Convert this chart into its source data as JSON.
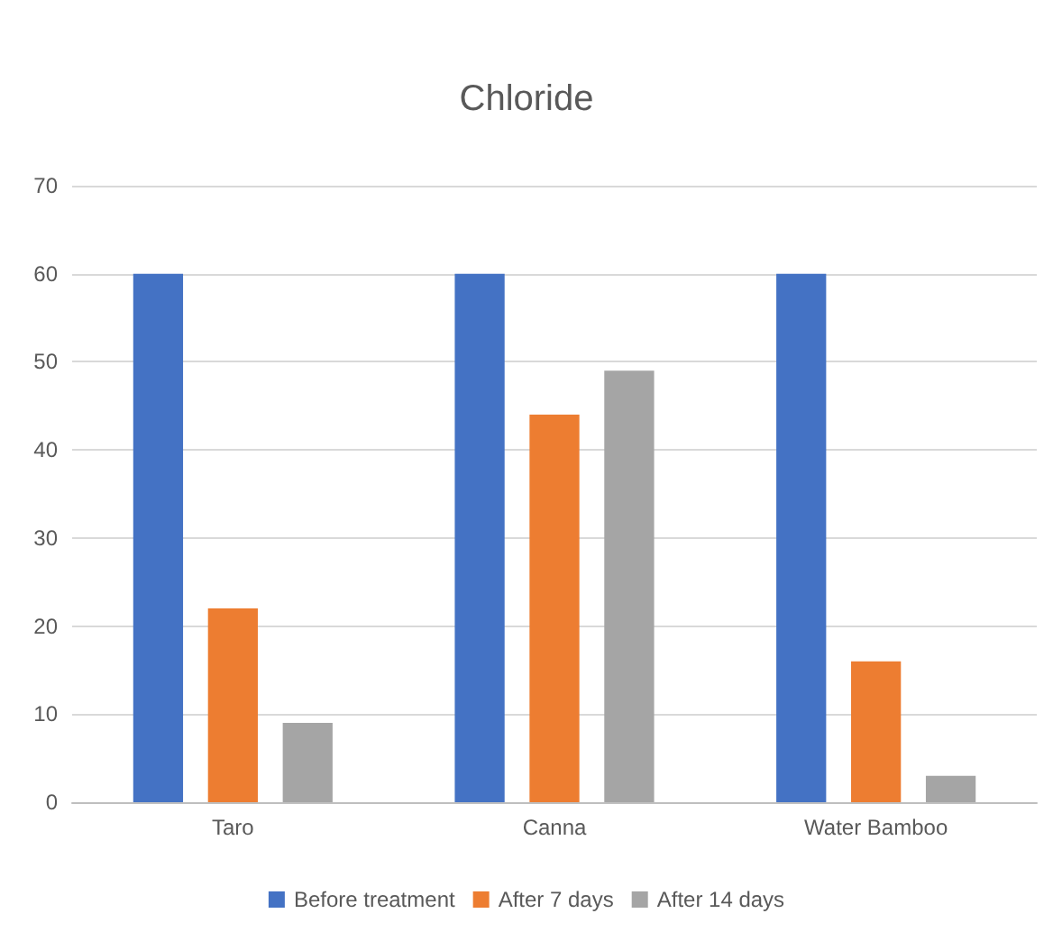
{
  "chart_data": {
    "type": "bar",
    "title": "Chloride",
    "categories": [
      "Taro",
      "Canna",
      "Water Bamboo"
    ],
    "series": [
      {
        "name": "Before treatment",
        "color": "#4472c4",
        "values": [
          60,
          60,
          60
        ]
      },
      {
        "name": "After 7 days",
        "color": "#ed7d31",
        "values": [
          22,
          44,
          16
        ]
      },
      {
        "name": "After 14 days",
        "color": "#a5a5a5",
        "values": [
          9,
          49,
          3
        ]
      }
    ],
    "ylim": [
      0,
      70
    ],
    "yticks": [
      0,
      10,
      20,
      30,
      40,
      50,
      60,
      70
    ],
    "grid": "y",
    "legend": "bottom"
  }
}
